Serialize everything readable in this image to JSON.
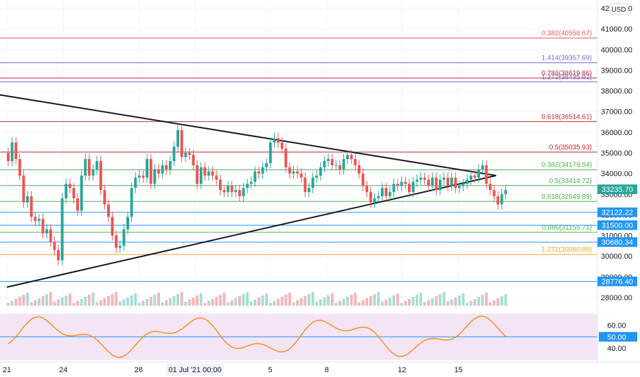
{
  "chart_data": {
    "type": "candlestick",
    "title": "",
    "currency_label": "USD",
    "price_axis": {
      "ylim": [
        27600,
        42400
      ],
      "ticks": [
        28000,
        29000,
        30000,
        31000,
        32000,
        33000,
        34000,
        35000,
        36000,
        37000,
        38000,
        39000,
        40000,
        41000,
        42000
      ],
      "tick_labels": [
        "28000.00",
        "29000.00",
        "30000.00",
        "31000.00",
        "32000.00",
        "33000.00",
        "34000.00",
        "35000.00",
        "36000.00",
        "37000.00",
        "38000.00",
        "39000.00",
        "40000.00",
        "41000.00",
        "42000.00"
      ]
    },
    "x_axis": {
      "date_range": [
        "Jun 21",
        "Jul 17"
      ],
      "ticks": [
        {
          "date": "Jun 21",
          "label": "21"
        },
        {
          "date": "Jun 24",
          "label": "24"
        },
        {
          "date": "Jun 28",
          "label": "28"
        },
        {
          "date": "Jul 01",
          "label": "01 Jul '21  00:00"
        },
        {
          "date": "Jul 05",
          "label": "5"
        },
        {
          "date": "Jul 08",
          "label": "8"
        },
        {
          "date": "Jul 12",
          "label": "12"
        },
        {
          "date": "Jul 15",
          "label": "15"
        }
      ]
    },
    "fib_levels": [
      {
        "label": "0.382(40558.67)",
        "value": 40558.67,
        "color": "#e05a5a"
      },
      {
        "label": "1.414(39357.69)",
        "value": 39357.69,
        "color": "#7b68c9"
      },
      {
        "label": "0.786(38619.86)",
        "value": 38619.86,
        "color": "#c0282d"
      },
      {
        "label": "1.272(38435.92)",
        "value": 38435.92,
        "color": "#7b68c9"
      },
      {
        "label": "0.618(36514.61)",
        "value": 36514.61,
        "color": "#c0282d"
      },
      {
        "label": "0.5(35035.93)",
        "value": 35035.93,
        "color": "#c0282d"
      },
      {
        "label": "0.382(34179.54)",
        "value": 34179.54,
        "color": "#4caf50"
      },
      {
        "label": "0.5(33414.72)",
        "value": 33414.72,
        "color": "#4caf50"
      },
      {
        "label": "0.618(32649.89)",
        "value": 32649.89,
        "color": "#4caf50"
      },
      {
        "label": "0.886(31155.71)",
        "value": 31155.71,
        "color": "#4caf50"
      },
      {
        "label": "1.272(30080.95)",
        "value": 30080.95,
        "color": "#f5a623"
      }
    ],
    "price_markers": [
      {
        "label": "33235.70",
        "value": 33235.7,
        "bg": "#26a69a"
      },
      {
        "label": "32122.22",
        "value": 32122.22,
        "bg": "#2196f3"
      },
      {
        "label": "31500.00",
        "value": 31500.0,
        "bg": "#2196f3"
      },
      {
        "label": "30680.34",
        "value": 30680.34,
        "bg": "#2196f3"
      },
      {
        "label": "28776.40",
        "value": 28776.4,
        "bg": "#2196f3"
      }
    ],
    "trendlines": [
      {
        "name": "upper-triangle",
        "from": [
          "Jun 20",
          37900
        ],
        "to": [
          "Jul 17",
          33900
        ]
      },
      {
        "name": "lower-triangle",
        "from": [
          "Jun 21",
          28500
        ],
        "to": [
          "Jul 17",
          33900
        ]
      }
    ],
    "candles_close": [
      34600,
      35500,
      34700,
      33900,
      32600,
      32900,
      31900,
      31700,
      31800,
      31100,
      31300,
      30700,
      30300,
      29800,
      32800,
      33500,
      33300,
      32800,
      32200,
      33900,
      34700,
      33900,
      34200,
      34600,
      33200,
      32500,
      31900,
      31000,
      30400,
      30500,
      31300,
      31900,
      33300,
      33800,
      33900,
      33800,
      34700,
      33500,
      34200,
      34000,
      34400,
      34200,
      34600,
      35300,
      36100,
      34800,
      35000,
      34900,
      34400,
      33500,
      34300,
      33900,
      34100,
      33900,
      33700,
      33200,
      33100,
      33400,
      33100,
      33200,
      32900,
      33300,
      33500,
      33600,
      34100,
      34000,
      34300,
      34500,
      35500,
      35700,
      35500,
      35200,
      34300,
      34000,
      34100,
      34000,
      33800,
      33100,
      33300,
      33800,
      33900,
      34300,
      34600,
      34700,
      34400,
      34400,
      34200,
      34700,
      34900,
      34700,
      34400,
      34000,
      33400,
      33100,
      32600,
      32800,
      32900,
      33300,
      32900,
      33100,
      33500,
      33400,
      33600,
      33500,
      33100,
      33600,
      33700,
      33800,
      33700,
      33400,
      33800,
      33200,
      33700,
      33800,
      33400,
      33800,
      33300,
      33400,
      33500,
      33700,
      33900,
      33800,
      34200,
      34400,
      33500,
      33200,
      32900,
      32500,
      33000,
      33200
    ],
    "rsi": {
      "ylim": [
        33,
        71
      ],
      "ticks": [
        40,
        60
      ],
      "tick_labels": [
        "40.00",
        "60.00"
      ],
      "current_label": "50.00",
      "band": [
        30,
        70
      ],
      "midline": 50
    }
  }
}
